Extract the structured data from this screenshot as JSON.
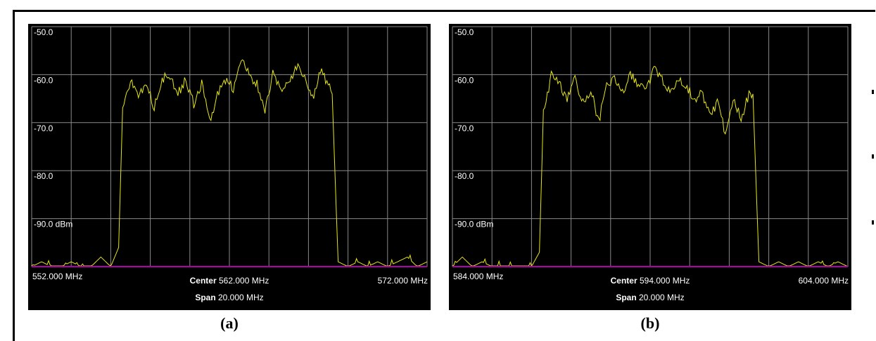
{
  "chart_data": [
    {
      "type": "line",
      "caption": "(a)",
      "y_tick_labels": [
        "-50.0",
        "-60.0",
        "-70.0",
        "-80.0",
        "-90.0 dBm"
      ],
      "ylim": [
        -100,
        -50
      ],
      "xlim": [
        552,
        572
      ],
      "x_left_label": "552.000 MHz",
      "x_right_label": "572.000 MHz",
      "center_title": "Center",
      "center_value": "562.000 MHz",
      "span_title": "Span",
      "span_value": "20.000 MHz",
      "grid": true,
      "colors": {
        "trace": "#e6e619",
        "grid": "#8a8a8a",
        "baseline": "#b000b0",
        "background": "#000000",
        "text": "#ffffff"
      },
      "series": [
        {
          "x": [
            552.0,
            552.5,
            553.0,
            553.5,
            554.0,
            554.5,
            555.0,
            555.5,
            556.0,
            556.4,
            556.6,
            557.0,
            557.4,
            557.8,
            558.2,
            558.6,
            559.0,
            559.4,
            559.8,
            560.2,
            560.6,
            561.0,
            561.4,
            561.8,
            562.2,
            562.6,
            563.0,
            563.4,
            563.8,
            564.2,
            564.6,
            565.0,
            565.4,
            565.8,
            566.2,
            566.6,
            567.0,
            567.2,
            567.5,
            568.0,
            568.5,
            569.0,
            569.5,
            570.0,
            570.5,
            571.0,
            571.5,
            572.0
          ],
          "y": [
            -100,
            -99,
            -100,
            -100,
            -99,
            -100,
            -100,
            -98,
            -100,
            -96,
            -67,
            -61,
            -64,
            -62,
            -67,
            -61,
            -60,
            -64,
            -61,
            -66,
            -62,
            -70,
            -64,
            -61,
            -63,
            -57,
            -60,
            -62,
            -68,
            -60,
            -63,
            -62,
            -58,
            -61,
            -65,
            -59,
            -62,
            -64,
            -99,
            -100,
            -99,
            -100,
            -99,
            -100,
            -99,
            -98,
            -100,
            -99
          ]
        }
      ]
    },
    {
      "type": "line",
      "caption": "(b)",
      "y_tick_labels": [
        "-50.0",
        "-60.0",
        "-70.0",
        "-80.0",
        "-90.0 dBm"
      ],
      "ylim": [
        -100,
        -50
      ],
      "xlim": [
        584,
        604
      ],
      "x_left_label": "584.000 MHz",
      "x_right_label": "604.000 MHz",
      "center_title": "Center",
      "center_value": "594.000 MHz",
      "span_title": "Span",
      "span_value": "20.000 MHz",
      "grid": true,
      "colors": {
        "trace": "#e6e619",
        "grid": "#8a8a8a",
        "baseline": "#b000b0",
        "background": "#000000",
        "text": "#ffffff"
      },
      "series": [
        {
          "x": [
            584.0,
            584.5,
            585.0,
            585.5,
            586.0,
            586.5,
            587.0,
            587.5,
            588.0,
            588.4,
            588.6,
            589.0,
            589.4,
            589.8,
            590.2,
            590.6,
            591.0,
            591.4,
            591.8,
            592.2,
            592.6,
            593.0,
            593.4,
            593.8,
            594.2,
            594.6,
            595.0,
            595.4,
            595.8,
            596.2,
            596.6,
            597.0,
            597.4,
            597.8,
            598.2,
            598.6,
            599.0,
            599.2,
            599.5,
            600.0,
            600.5,
            601.0,
            601.5,
            602.0,
            602.5,
            603.0,
            603.5,
            604.0
          ],
          "y": [
            -100,
            -98,
            -100,
            -99,
            -100,
            -100,
            -100,
            -100,
            -100,
            -97,
            -68,
            -60,
            -62,
            -65,
            -61,
            -66,
            -63,
            -70,
            -62,
            -61,
            -64,
            -60,
            -62,
            -63,
            -59,
            -61,
            -64,
            -61,
            -62,
            -65,
            -64,
            -68,
            -66,
            -72,
            -65,
            -69,
            -64,
            -64,
            -99,
            -100,
            -99,
            -100,
            -99,
            -100,
            -99,
            -100,
            -99,
            -100
          ]
        }
      ]
    }
  ]
}
